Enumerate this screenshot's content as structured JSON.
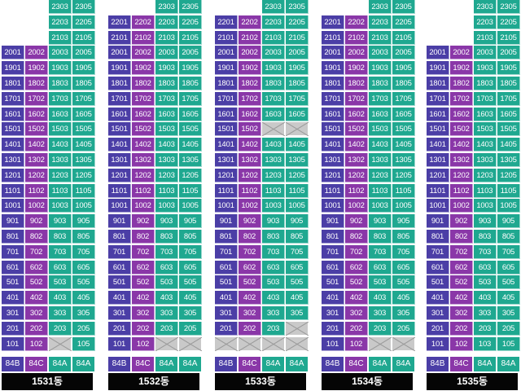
{
  "buildings": [
    {
      "label": "1531동",
      "types": [
        "84B",
        "84C",
        "84A",
        "84A"
      ],
      "floors": [
        {
          "floor": 23,
          "units": [
            null,
            null,
            "2303",
            "2305"
          ]
        },
        {
          "floor": 22,
          "units": [
            null,
            null,
            "2203",
            "2205"
          ]
        },
        {
          "floor": 21,
          "units": [
            null,
            null,
            "2103",
            "2105"
          ]
        },
        {
          "floor": 20,
          "units": [
            "2001",
            "2002",
            "2003",
            "2005"
          ]
        },
        {
          "floor": 19,
          "units": [
            "1901",
            "1902",
            "1903",
            "1905"
          ]
        },
        {
          "floor": 18,
          "units": [
            "1801",
            "1802",
            "1803",
            "1805"
          ]
        },
        {
          "floor": 17,
          "units": [
            "1701",
            "1702",
            "1703",
            "1705"
          ]
        },
        {
          "floor": 16,
          "units": [
            "1601",
            "1602",
            "1603",
            "1605"
          ]
        },
        {
          "floor": 15,
          "units": [
            "1501",
            "1502",
            "1503",
            "1505"
          ]
        },
        {
          "floor": 14,
          "units": [
            "1401",
            "1402",
            "1403",
            "1405"
          ]
        },
        {
          "floor": 13,
          "units": [
            "1301",
            "1302",
            "1303",
            "1305"
          ]
        },
        {
          "floor": 12,
          "units": [
            "1201",
            "1202",
            "1203",
            "1205"
          ]
        },
        {
          "floor": 11,
          "units": [
            "1101",
            "1102",
            "1103",
            "1105"
          ]
        },
        {
          "floor": 10,
          "units": [
            "1001",
            "1002",
            "1003",
            "1005"
          ]
        },
        {
          "floor": 9,
          "units": [
            "901",
            "902",
            "903",
            "905"
          ]
        },
        {
          "floor": 8,
          "units": [
            "801",
            "802",
            "803",
            "805"
          ]
        },
        {
          "floor": 7,
          "units": [
            "701",
            "702",
            "703",
            "705"
          ]
        },
        {
          "floor": 6,
          "units": [
            "601",
            "602",
            "603",
            "605"
          ]
        },
        {
          "floor": 5,
          "units": [
            "501",
            "502",
            "503",
            "505"
          ]
        },
        {
          "floor": 4,
          "units": [
            "401",
            "402",
            "403",
            "405"
          ]
        },
        {
          "floor": 3,
          "units": [
            "301",
            "302",
            "303",
            "305"
          ]
        },
        {
          "floor": 2,
          "units": [
            "201",
            "202",
            "203",
            "205"
          ]
        },
        {
          "floor": 1,
          "units": [
            "101",
            "102",
            "",
            "105"
          ]
        }
      ]
    },
    {
      "label": "1532동",
      "types": [
        "84B",
        "84C",
        "84A",
        "84A"
      ],
      "floors": [
        {
          "floor": 23,
          "units": [
            null,
            null,
            "2303",
            "2305"
          ]
        },
        {
          "floor": 22,
          "units": [
            "2201",
            "2202",
            "2203",
            "2205"
          ]
        },
        {
          "floor": 21,
          "units": [
            "2101",
            "2102",
            "2103",
            "2105"
          ]
        },
        {
          "floor": 20,
          "units": [
            "2001",
            "2002",
            "2003",
            "2005"
          ]
        },
        {
          "floor": 19,
          "units": [
            "1901",
            "1902",
            "1903",
            "1905"
          ]
        },
        {
          "floor": 18,
          "units": [
            "1801",
            "1802",
            "1803",
            "1805"
          ]
        },
        {
          "floor": 17,
          "units": [
            "1701",
            "1702",
            "1703",
            "1705"
          ]
        },
        {
          "floor": 16,
          "units": [
            "1601",
            "1602",
            "1603",
            "1605"
          ]
        },
        {
          "floor": 15,
          "units": [
            "1501",
            "1502",
            "1503",
            "1505"
          ]
        },
        {
          "floor": 14,
          "units": [
            "1401",
            "1402",
            "1403",
            "1405"
          ]
        },
        {
          "floor": 13,
          "units": [
            "1301",
            "1302",
            "1303",
            "1305"
          ]
        },
        {
          "floor": 12,
          "units": [
            "1201",
            "1202",
            "1203",
            "1205"
          ]
        },
        {
          "floor": 11,
          "units": [
            "1101",
            "1102",
            "1103",
            "1105"
          ]
        },
        {
          "floor": 10,
          "units": [
            "1001",
            "1002",
            "1003",
            "1005"
          ]
        },
        {
          "floor": 9,
          "units": [
            "901",
            "902",
            "903",
            "905"
          ]
        },
        {
          "floor": 8,
          "units": [
            "801",
            "802",
            "803",
            "805"
          ]
        },
        {
          "floor": 7,
          "units": [
            "701",
            "702",
            "703",
            "705"
          ]
        },
        {
          "floor": 6,
          "units": [
            "601",
            "602",
            "603",
            "605"
          ]
        },
        {
          "floor": 5,
          "units": [
            "501",
            "502",
            "503",
            "505"
          ]
        },
        {
          "floor": 4,
          "units": [
            "401",
            "402",
            "403",
            "405"
          ]
        },
        {
          "floor": 3,
          "units": [
            "301",
            "302",
            "303",
            "305"
          ]
        },
        {
          "floor": 2,
          "units": [
            "201",
            "202",
            "203",
            "205"
          ]
        },
        {
          "floor": 1,
          "units": [
            "101",
            "102",
            "",
            ""
          ]
        }
      ]
    },
    {
      "label": "1533동",
      "types": [
        "84B",
        "84C",
        "84A",
        "84A"
      ],
      "floors": [
        {
          "floor": 23,
          "units": [
            null,
            null,
            "2303",
            "2305"
          ]
        },
        {
          "floor": 22,
          "units": [
            "2201",
            "2202",
            "2203",
            "2205"
          ]
        },
        {
          "floor": 21,
          "units": [
            "2101",
            "2102",
            "2103",
            "2105"
          ]
        },
        {
          "floor": 20,
          "units": [
            "2001",
            "2002",
            "2003",
            "2005"
          ]
        },
        {
          "floor": 19,
          "units": [
            "1901",
            "1902",
            "1903",
            "1905"
          ]
        },
        {
          "floor": 18,
          "units": [
            "1801",
            "1802",
            "1803",
            "1805"
          ]
        },
        {
          "floor": 17,
          "units": [
            "1701",
            "1702",
            "1703",
            "1705"
          ]
        },
        {
          "floor": 16,
          "units": [
            "1601",
            "1602",
            "1603",
            "1605"
          ]
        },
        {
          "floor": 15,
          "units": [
            "1501",
            "1502",
            "",
            ""
          ]
        },
        {
          "floor": 14,
          "units": [
            "1401",
            "1402",
            "1403",
            "1405"
          ]
        },
        {
          "floor": 13,
          "units": [
            "1301",
            "1302",
            "1303",
            "1305"
          ]
        },
        {
          "floor": 12,
          "units": [
            "1201",
            "1202",
            "1203",
            "1205"
          ]
        },
        {
          "floor": 11,
          "units": [
            "1101",
            "1102",
            "1103",
            "1105"
          ]
        },
        {
          "floor": 10,
          "units": [
            "1001",
            "1002",
            "1003",
            "1005"
          ]
        },
        {
          "floor": 9,
          "units": [
            "901",
            "902",
            "903",
            "905"
          ]
        },
        {
          "floor": 8,
          "units": [
            "801",
            "802",
            "803",
            "805"
          ]
        },
        {
          "floor": 7,
          "units": [
            "701",
            "702",
            "703",
            "705"
          ]
        },
        {
          "floor": 6,
          "units": [
            "601",
            "602",
            "603",
            "605"
          ]
        },
        {
          "floor": 5,
          "units": [
            "501",
            "502",
            "503",
            "505"
          ]
        },
        {
          "floor": 4,
          "units": [
            "401",
            "402",
            "403",
            "405"
          ]
        },
        {
          "floor": 3,
          "units": [
            "301",
            "302",
            "303",
            "305"
          ]
        },
        {
          "floor": 2,
          "units": [
            "201",
            "202",
            "203",
            ""
          ]
        },
        {
          "floor": 1,
          "units": [
            "",
            "",
            "",
            ""
          ]
        }
      ]
    },
    {
      "label": "1534동",
      "types": [
        "84B",
        "84C",
        "84A",
        "84A"
      ],
      "floors": [
        {
          "floor": 23,
          "units": [
            null,
            null,
            "2303",
            "2305"
          ]
        },
        {
          "floor": 22,
          "units": [
            "2201",
            "2202",
            "2203",
            "2205"
          ]
        },
        {
          "floor": 21,
          "units": [
            "2101",
            "2102",
            "2103",
            "2105"
          ]
        },
        {
          "floor": 20,
          "units": [
            "2001",
            "2002",
            "2003",
            "2005"
          ]
        },
        {
          "floor": 19,
          "units": [
            "1901",
            "1902",
            "1903",
            "1905"
          ]
        },
        {
          "floor": 18,
          "units": [
            "1801",
            "1802",
            "1803",
            "1805"
          ]
        },
        {
          "floor": 17,
          "units": [
            "1701",
            "1702",
            "1703",
            "1705"
          ]
        },
        {
          "floor": 16,
          "units": [
            "1601",
            "1602",
            "1603",
            "1605"
          ]
        },
        {
          "floor": 15,
          "units": [
            "1501",
            "1502",
            "1503",
            "1505"
          ]
        },
        {
          "floor": 14,
          "units": [
            "1401",
            "1402",
            "1403",
            "1405"
          ]
        },
        {
          "floor": 13,
          "units": [
            "1301",
            "1302",
            "1303",
            "1305"
          ]
        },
        {
          "floor": 12,
          "units": [
            "1201",
            "1202",
            "1203",
            "1205"
          ]
        },
        {
          "floor": 11,
          "units": [
            "1101",
            "1102",
            "1103",
            "1105"
          ]
        },
        {
          "floor": 10,
          "units": [
            "1001",
            "1002",
            "1003",
            "1005"
          ]
        },
        {
          "floor": 9,
          "units": [
            "901",
            "902",
            "903",
            "905"
          ]
        },
        {
          "floor": 8,
          "units": [
            "801",
            "802",
            "803",
            "805"
          ]
        },
        {
          "floor": 7,
          "units": [
            "701",
            "702",
            "703",
            "705"
          ]
        },
        {
          "floor": 6,
          "units": [
            "601",
            "602",
            "603",
            "605"
          ]
        },
        {
          "floor": 5,
          "units": [
            "501",
            "502",
            "503",
            "505"
          ]
        },
        {
          "floor": 4,
          "units": [
            "401",
            "402",
            "403",
            "405"
          ]
        },
        {
          "floor": 3,
          "units": [
            "301",
            "302",
            "303",
            "305"
          ]
        },
        {
          "floor": 2,
          "units": [
            "201",
            "202",
            "203",
            "205"
          ]
        },
        {
          "floor": 1,
          "units": [
            "101",
            "102",
            "",
            ""
          ]
        }
      ]
    },
    {
      "label": "1535동",
      "types": [
        "84B",
        "84C",
        "84A",
        "84A"
      ],
      "floors": [
        {
          "floor": 23,
          "units": [
            null,
            null,
            "2303",
            "2305"
          ]
        },
        {
          "floor": 22,
          "units": [
            null,
            null,
            "2203",
            "2205"
          ]
        },
        {
          "floor": 21,
          "units": [
            null,
            null,
            "2103",
            "2105"
          ]
        },
        {
          "floor": 20,
          "units": [
            "2001",
            "2002",
            "2003",
            "2005"
          ]
        },
        {
          "floor": 19,
          "units": [
            "1901",
            "1902",
            "1903",
            "1905"
          ]
        },
        {
          "floor": 18,
          "units": [
            "1801",
            "1802",
            "1803",
            "1805"
          ]
        },
        {
          "floor": 17,
          "units": [
            "1701",
            "1702",
            "1703",
            "1705"
          ]
        },
        {
          "floor": 16,
          "units": [
            "1601",
            "1602",
            "1603",
            "1605"
          ]
        },
        {
          "floor": 15,
          "units": [
            "1501",
            "1502",
            "1503",
            "1505"
          ]
        },
        {
          "floor": 14,
          "units": [
            "1401",
            "1402",
            "1403",
            "1405"
          ]
        },
        {
          "floor": 13,
          "units": [
            "1301",
            "1302",
            "1303",
            "1305"
          ]
        },
        {
          "floor": 12,
          "units": [
            "1201",
            "1202",
            "1203",
            "1205"
          ]
        },
        {
          "floor": 11,
          "units": [
            "1101",
            "1102",
            "1103",
            "1105"
          ]
        },
        {
          "floor": 10,
          "units": [
            "1001",
            "1002",
            "1003",
            "1005"
          ]
        },
        {
          "floor": 9,
          "units": [
            "901",
            "902",
            "903",
            "905"
          ]
        },
        {
          "floor": 8,
          "units": [
            "801",
            "802",
            "803",
            "805"
          ]
        },
        {
          "floor": 7,
          "units": [
            "701",
            "702",
            "703",
            "705"
          ]
        },
        {
          "floor": 6,
          "units": [
            "601",
            "602",
            "603",
            "605"
          ]
        },
        {
          "floor": 5,
          "units": [
            "501",
            "502",
            "503",
            "505"
          ]
        },
        {
          "floor": 4,
          "units": [
            "401",
            "402",
            "403",
            "405"
          ]
        },
        {
          "floor": 3,
          "units": [
            "301",
            "302",
            "303",
            "305"
          ]
        },
        {
          "floor": 2,
          "units": [
            "201",
            "202",
            "203",
            "205"
          ]
        },
        {
          "floor": 1,
          "units": [
            "101",
            "102",
            "103",
            "105"
          ]
        }
      ]
    }
  ],
  "colors": {
    "84B": "#4b3ea6",
    "84C": "#8a37a8",
    "84A": "#1fa890",
    "unavailable": "#c9c9c9",
    "label_bg": "#050505"
  },
  "notes": {
    "null_unit": "no unit exists at this position",
    "empty_unit": "unit position shown as grey crossed-out cell"
  }
}
